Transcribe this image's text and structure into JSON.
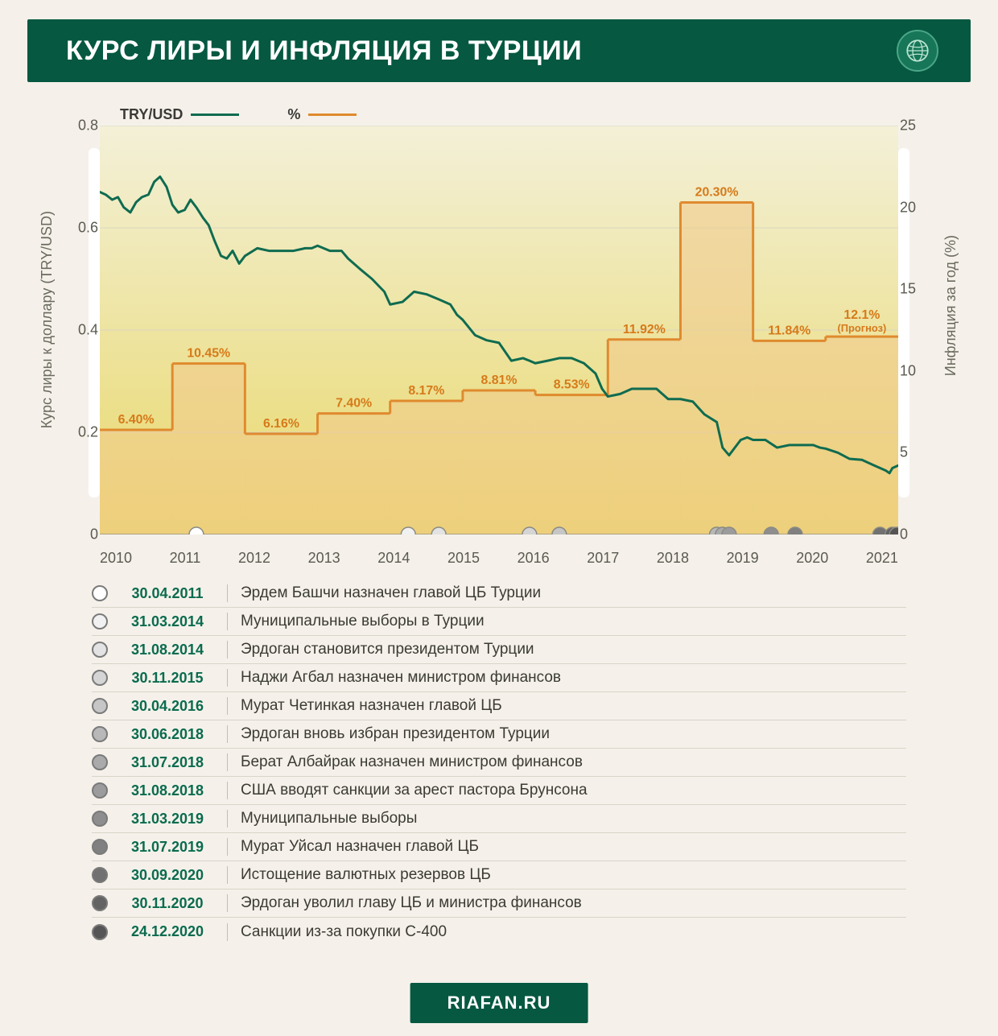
{
  "header": {
    "title": "КУРС ЛИРЫ И ИНФЛЯЦИЯ В ТУРЦИИ",
    "bg_color": "#065841",
    "text_color": "#ffffff"
  },
  "legend": {
    "series1": {
      "label": "TRY/USD",
      "color": "#0f6b50"
    },
    "series2": {
      "label": "%",
      "color": "#e08a2e"
    }
  },
  "chart": {
    "type": "combo_line_bar",
    "background_top": "#f3f0d8",
    "background_bottom": "#e9d86a",
    "grid_color": "#d9d5c2",
    "axis_color": "#9a9684",
    "x_years": [
      "2010",
      "2011",
      "2012",
      "2013",
      "2014",
      "2015",
      "2016",
      "2017",
      "2018",
      "2019",
      "2020",
      "2021"
    ],
    "x_range": [
      2010,
      2021
    ],
    "y_left": {
      "label": "Курс лиры к доллару (TRY/USD)",
      "min": 0,
      "max": 0.8,
      "ticks": [
        0,
        0.2,
        0.4,
        0.6,
        0.8
      ]
    },
    "y_right": {
      "label": "Инфляция за год (%)",
      "min": 0,
      "max": 25,
      "ticks": [
        0,
        5,
        10,
        15,
        20,
        25
      ]
    },
    "inflation_bars": [
      {
        "year": 2010,
        "value": 6.4,
        "label": "6.40%"
      },
      {
        "year": 2011,
        "value": 10.45,
        "label": "10.45%"
      },
      {
        "year": 2012,
        "value": 6.16,
        "label": "6.16%"
      },
      {
        "year": 2013,
        "value": 7.4,
        "label": "7.40%"
      },
      {
        "year": 2014,
        "value": 8.17,
        "label": "8.17%"
      },
      {
        "year": 2015,
        "value": 8.81,
        "label": "8.81%"
      },
      {
        "year": 2016,
        "value": 8.53,
        "label": "8.53%"
      },
      {
        "year": 2017,
        "value": 11.92,
        "label": "11.92%"
      },
      {
        "year": 2018,
        "value": 20.3,
        "label": "20.30%"
      },
      {
        "year": 2019,
        "value": 11.84,
        "label": "11.84%"
      },
      {
        "year": 2020,
        "value": 12.1,
        "label": "12.1%",
        "sublabel": "(Прогноз)"
      }
    ],
    "bar_fill": "#f0c88a",
    "bar_fill_opacity": 0.55,
    "bar_stroke": "#e08a2e",
    "bar_label_color": "#d67a1a",
    "bar_label_fontsize": 14,
    "line_color": "#0f6b50",
    "line_width": 3,
    "lira_points": [
      [
        2010.0,
        0.67
      ],
      [
        2010.08,
        0.665
      ],
      [
        2010.17,
        0.655
      ],
      [
        2010.25,
        0.66
      ],
      [
        2010.33,
        0.64
      ],
      [
        2010.42,
        0.63
      ],
      [
        2010.5,
        0.65
      ],
      [
        2010.58,
        0.66
      ],
      [
        2010.67,
        0.665
      ],
      [
        2010.75,
        0.69
      ],
      [
        2010.83,
        0.7
      ],
      [
        2010.92,
        0.68
      ],
      [
        2011.0,
        0.645
      ],
      [
        2011.08,
        0.63
      ],
      [
        2011.17,
        0.635
      ],
      [
        2011.25,
        0.655
      ],
      [
        2011.33,
        0.64
      ],
      [
        2011.42,
        0.62
      ],
      [
        2011.5,
        0.605
      ],
      [
        2011.58,
        0.575
      ],
      [
        2011.67,
        0.545
      ],
      [
        2011.75,
        0.54
      ],
      [
        2011.83,
        0.555
      ],
      [
        2011.92,
        0.53
      ],
      [
        2012.0,
        0.545
      ],
      [
        2012.17,
        0.56
      ],
      [
        2012.33,
        0.555
      ],
      [
        2012.5,
        0.555
      ],
      [
        2012.67,
        0.555
      ],
      [
        2012.83,
        0.56
      ],
      [
        2012.92,
        0.56
      ],
      [
        2013.0,
        0.565
      ],
      [
        2013.17,
        0.555
      ],
      [
        2013.33,
        0.555
      ],
      [
        2013.42,
        0.54
      ],
      [
        2013.58,
        0.52
      ],
      [
        2013.75,
        0.5
      ],
      [
        2013.92,
        0.475
      ],
      [
        2014.0,
        0.45
      ],
      [
        2014.17,
        0.455
      ],
      [
        2014.33,
        0.475
      ],
      [
        2014.5,
        0.47
      ],
      [
        2014.67,
        0.46
      ],
      [
        2014.83,
        0.45
      ],
      [
        2014.92,
        0.43
      ],
      [
        2015.0,
        0.42
      ],
      [
        2015.17,
        0.39
      ],
      [
        2015.33,
        0.38
      ],
      [
        2015.5,
        0.375
      ],
      [
        2015.67,
        0.34
      ],
      [
        2015.83,
        0.345
      ],
      [
        2015.92,
        0.34
      ],
      [
        2016.0,
        0.335
      ],
      [
        2016.17,
        0.34
      ],
      [
        2016.33,
        0.345
      ],
      [
        2016.5,
        0.345
      ],
      [
        2016.67,
        0.335
      ],
      [
        2016.83,
        0.315
      ],
      [
        2016.92,
        0.285
      ],
      [
        2017.0,
        0.27
      ],
      [
        2017.17,
        0.275
      ],
      [
        2017.33,
        0.285
      ],
      [
        2017.5,
        0.285
      ],
      [
        2017.67,
        0.285
      ],
      [
        2017.83,
        0.265
      ],
      [
        2017.92,
        0.265
      ],
      [
        2018.0,
        0.265
      ],
      [
        2018.17,
        0.26
      ],
      [
        2018.33,
        0.235
      ],
      [
        2018.5,
        0.22
      ],
      [
        2018.58,
        0.17
      ],
      [
        2018.67,
        0.155
      ],
      [
        2018.83,
        0.185
      ],
      [
        2018.92,
        0.19
      ],
      [
        2019.0,
        0.185
      ],
      [
        2019.17,
        0.185
      ],
      [
        2019.33,
        0.17
      ],
      [
        2019.5,
        0.175
      ],
      [
        2019.67,
        0.175
      ],
      [
        2019.83,
        0.175
      ],
      [
        2019.92,
        0.17
      ],
      [
        2020.0,
        0.168
      ],
      [
        2020.17,
        0.16
      ],
      [
        2020.33,
        0.148
      ],
      [
        2020.5,
        0.146
      ],
      [
        2020.67,
        0.135
      ],
      [
        2020.83,
        0.125
      ],
      [
        2020.88,
        0.12
      ],
      [
        2020.92,
        0.13
      ],
      [
        2021.0,
        0.135
      ]
    ],
    "event_markers": [
      {
        "x": 2011.33,
        "shade": 0
      },
      {
        "x": 2014.25,
        "shade": 1
      },
      {
        "x": 2014.67,
        "shade": 2
      },
      {
        "x": 2015.92,
        "shade": 3
      },
      {
        "x": 2016.33,
        "shade": 4
      },
      {
        "x": 2018.5,
        "shade": 5
      },
      {
        "x": 2018.58,
        "shade": 6
      },
      {
        "x": 2018.67,
        "shade": 7
      },
      {
        "x": 2019.25,
        "shade": 8
      },
      {
        "x": 2019.58,
        "shade": 9
      },
      {
        "x": 2020.75,
        "shade": 10
      },
      {
        "x": 2020.92,
        "shade": 11
      },
      {
        "x": 2020.98,
        "shade": 12
      }
    ],
    "marker_radius": 9
  },
  "events": [
    {
      "date": "30.04.2011",
      "text": "Эрдем Башчи назначен главой ЦБ Турции"
    },
    {
      "date": "31.03.2014",
      "text": "Муниципальные выборы в Турции"
    },
    {
      "date": "31.08.2014",
      "text": "Эрдоган становится президентом Турции"
    },
    {
      "date": "30.11.2015",
      "text": "Наджи Агбал назначен министром финансов"
    },
    {
      "date": "30.04.2016",
      "text": "Мурат Четинкая назначен главой ЦБ"
    },
    {
      "date": "30.06.2018",
      "text": "Эрдоган вновь избран президентом Турции"
    },
    {
      "date": "31.07.2018",
      "text": "Берат Албайрак назначен министром финансов"
    },
    {
      "date": "31.08.2018",
      "text": "США вводят санкции за арест пастора Брунсона"
    },
    {
      "date": "31.03.2019",
      "text": "Муниципальные выборы"
    },
    {
      "date": "31.07.2019",
      "text": "Мурат Уйсал назначен главой ЦБ"
    },
    {
      "date": "30.09.2020",
      "text": "Истощение валютных резервов ЦБ"
    },
    {
      "date": "30.11.2020",
      "text": "Эрдоган уволил главу ЦБ и министра финансов"
    },
    {
      "date": "24.12.2020",
      "text": "Санкции из-за покупки С-400"
    }
  ],
  "event_shade_scale": {
    "from": "#ffffff",
    "to": "#555555",
    "border": "#7a7a7a"
  },
  "footer": {
    "text": "RIAFAN.RU"
  }
}
